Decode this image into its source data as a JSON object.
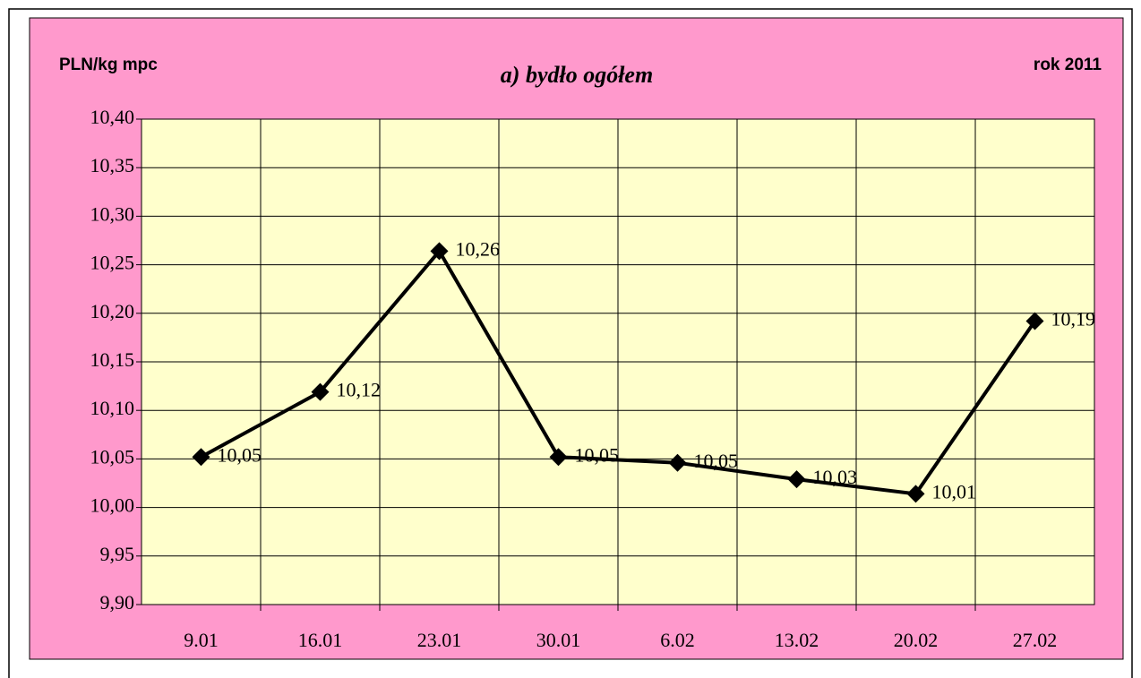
{
  "chart_data": {
    "type": "line",
    "title": "a) bydło ogółem",
    "y_label": "PLN/kg mpc",
    "annotation": "rok 2011",
    "categories": [
      "9.01",
      "16.01",
      "23.01",
      "30.01",
      "6.02",
      "13.02",
      "20.02",
      "27.02"
    ],
    "values": [
      10.052,
      10.119,
      10.264,
      10.052,
      10.046,
      10.029,
      10.014,
      10.192
    ],
    "value_labels": [
      "10,05",
      "10,12",
      "10,26",
      "10,05",
      "10,05",
      "10,03",
      "10,01",
      "10,19"
    ],
    "color": "#000000",
    "ylim": [
      9.9,
      10.4
    ],
    "yticks": [
      {
        "value": 9.9,
        "label": "9,90"
      },
      {
        "value": 9.95,
        "label": "9,95"
      },
      {
        "value": 10.0,
        "label": "10,00"
      },
      {
        "value": 10.05,
        "label": "10,05"
      },
      {
        "value": 10.1,
        "label": "10,10"
      },
      {
        "value": 10.15,
        "label": "10,15"
      },
      {
        "value": 10.2,
        "label": "10,20"
      },
      {
        "value": 10.25,
        "label": "10,25"
      },
      {
        "value": 10.3,
        "label": "10,30"
      },
      {
        "value": 10.35,
        "label": "10,35"
      },
      {
        "value": 10.4,
        "label": "10,40"
      }
    ],
    "grid": true
  }
}
